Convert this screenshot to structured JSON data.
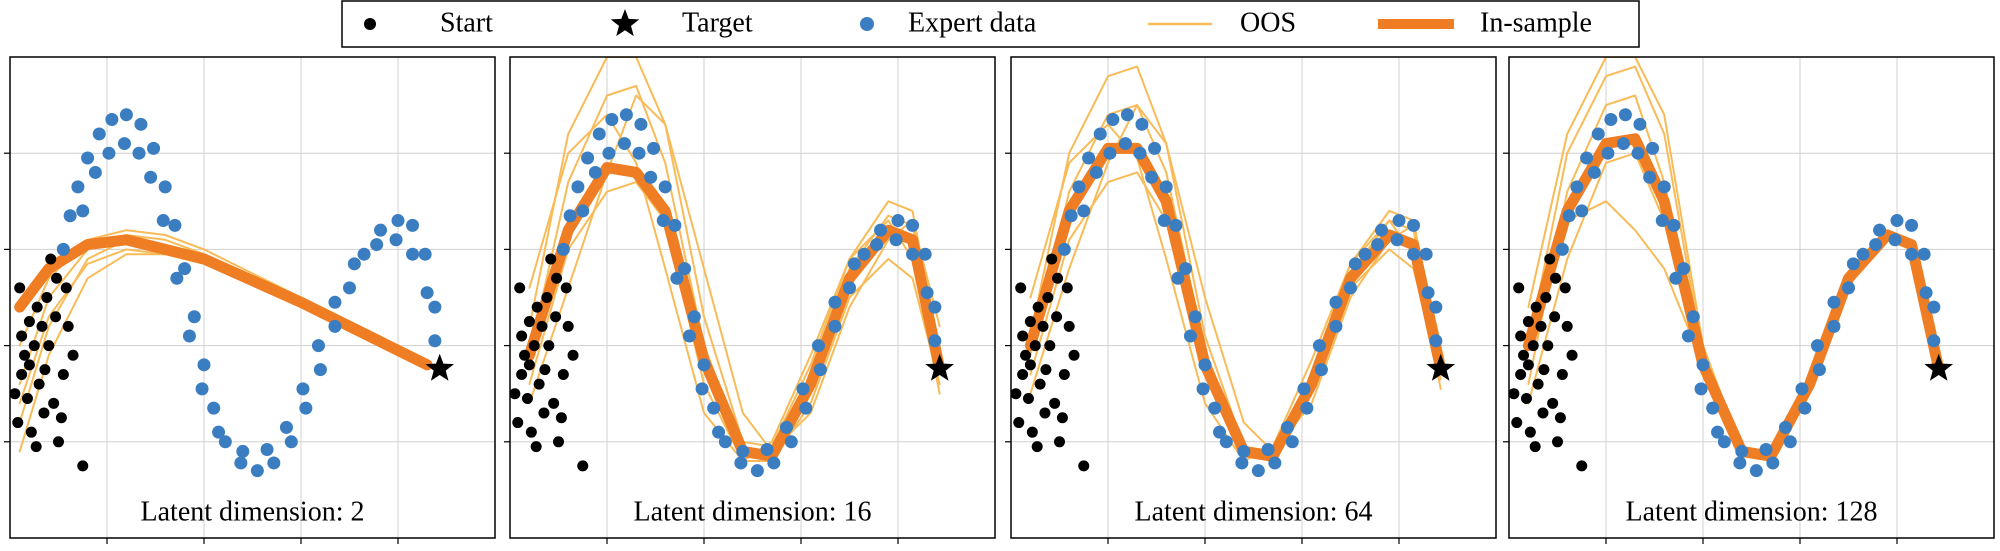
{
  "legend": [
    {
      "label": "Start",
      "marker": "dot",
      "color": "#000000"
    },
    {
      "label": "Target",
      "marker": "star",
      "color": "#000000"
    },
    {
      "label": "Expert data",
      "marker": "dot",
      "color": "#3a7dc0"
    },
    {
      "label": "OOS",
      "marker": "line",
      "color": "#f8bb58"
    },
    {
      "label": "In-sample",
      "marker": "thick-line",
      "color": "#ee7d24"
    }
  ],
  "start": {
    "x": [
      0.05,
      0.12,
      0.2,
      0.28,
      0.35,
      0.4,
      0.48,
      0.55,
      0.1,
      0.22,
      0.3,
      0.45,
      0.6,
      0.15,
      0.38,
      0.5,
      0.25,
      0.08,
      0.42,
      0.33,
      0.18,
      0.58,
      0.65,
      0.27,
      0.47,
      0.12,
      0.36,
      0.53,
      0.2,
      0.75
    ],
    "y": [
      1.5,
      2.1,
      1.8,
      2.4,
      1.3,
      2.0,
      2.7,
      1.7,
      2.6,
      1.1,
      1.6,
      1.4,
      2.2,
      1.9,
      2.5,
      1.0,
      2.0,
      1.2,
      2.9,
      2.2,
      1.45,
      2.6,
      1.9,
      0.95,
      2.3,
      1.7,
      1.75,
      1.25,
      2.25,
      0.75
    ]
  },
  "target": {
    "x": 4.43,
    "y": 1.76
  },
  "expert_data": {
    "x": [
      0.55,
      0.62,
      0.7,
      0.8,
      0.92,
      1.05,
      1.2,
      1.35,
      1.48,
      1.6,
      1.7,
      1.8,
      1.9,
      2.0,
      2.1,
      2.22,
      2.38,
      2.55,
      2.72,
      2.9,
      3.05,
      3.2,
      3.35,
      3.5,
      3.65,
      3.82,
      4.0,
      4.15,
      4.28,
      4.38,
      0.75,
      0.88,
      1.02,
      1.18,
      1.33,
      1.45,
      1.58,
      1.72,
      1.85,
      1.98,
      2.15,
      2.4,
      2.65,
      2.85,
      3.02,
      3.18,
      3.35,
      3.55,
      3.78,
      3.98,
      4.15,
      4.3,
      4.38
    ],
    "y": [
      3.0,
      3.35,
      3.65,
      3.95,
      4.2,
      4.35,
      4.4,
      4.3,
      4.05,
      3.65,
      3.25,
      2.8,
      2.3,
      1.8,
      1.35,
      1.0,
      0.78,
      0.7,
      0.78,
      1.0,
      1.35,
      1.75,
      2.2,
      2.6,
      2.95,
      3.2,
      3.3,
      3.25,
      2.95,
      2.4,
      3.4,
      3.8,
      4.0,
      4.1,
      4.0,
      3.75,
      3.3,
      2.7,
      2.1,
      1.55,
      1.1,
      0.9,
      0.92,
      1.15,
      1.55,
      2.0,
      2.45,
      2.85,
      3.05,
      3.1,
      2.95,
      2.55,
      2.05
    ]
  },
  "chart_data": [
    {
      "type": "line",
      "title": "Latent dimension: 2",
      "x": [
        0.1,
        0.4,
        0.8,
        1.2,
        1.6,
        2.0,
        3.0,
        4.3
      ],
      "oos": [
        [
          1.2,
          2.2,
          2.9,
          3.1,
          3.05,
          2.9,
          null,
          null
        ],
        [
          1.6,
          2.5,
          3.0,
          3.15,
          3.1,
          2.95,
          2.5,
          null
        ],
        [
          0.9,
          1.9,
          2.7,
          2.95,
          2.95,
          2.85,
          null,
          null
        ],
        [
          2.0,
          2.7,
          3.1,
          3.2,
          3.15,
          3.0,
          2.5,
          1.85
        ],
        [
          1.4,
          2.3,
          2.85,
          3.0,
          2.95,
          null,
          null,
          null
        ]
      ],
      "in_sample": [
        2.4,
        2.8,
        3.05,
        3.1,
        3.0,
        2.9,
        2.45,
        1.8
      ],
      "xlim": [
        0,
        5
      ],
      "ylim": [
        0,
        5
      ],
      "xticks": [
        1,
        2,
        3,
        4
      ],
      "yticks": [
        1,
        2,
        3,
        4
      ],
      "grid": true
    },
    {
      "type": "line",
      "title": "Latent dimension: 16",
      "x": [
        0.2,
        0.6,
        1.0,
        1.3,
        1.6,
        2.0,
        2.4,
        2.7,
        3.1,
        3.5,
        3.9,
        4.15,
        4.43
      ],
      "oos": [
        [
          2.2,
          4.2,
          5.0,
          5.0,
          4.3,
          2.3,
          1.0,
          0.95,
          1.8,
          2.9,
          3.5,
          3.4,
          1.9
        ],
        [
          1.6,
          3.0,
          3.6,
          3.7,
          3.3,
          1.6,
          0.8,
          0.8,
          1.4,
          2.5,
          2.9,
          2.7,
          1.6
        ],
        [
          1.4,
          2.6,
          3.8,
          4.6,
          4.3,
          2.8,
          1.3,
          0.9,
          1.3,
          2.4,
          3.1,
          3.3,
          2.2
        ],
        [
          2.6,
          4.0,
          4.4,
          3.9,
          2.8,
          1.3,
          0.8,
          1.0,
          1.9,
          2.9,
          3.3,
          2.9,
          1.5
        ],
        [
          1.9,
          3.7,
          4.6,
          4.7,
          3.9,
          2.0,
          0.95,
          0.85,
          1.7,
          2.8,
          3.35,
          3.25,
          1.8
        ]
      ],
      "in_sample": [
        1.9,
        3.2,
        3.85,
        3.8,
        3.4,
        1.85,
        0.9,
        0.85,
        1.6,
        2.7,
        3.2,
        3.1,
        1.76
      ],
      "xlim": [
        0,
        5
      ],
      "ylim": [
        0,
        5
      ],
      "xticks": [
        1,
        2,
        3,
        4
      ],
      "yticks": [
        1,
        2,
        3,
        4
      ],
      "grid": true
    },
    {
      "type": "line",
      "title": "Latent dimension: 64",
      "x": [
        0.2,
        0.6,
        1.0,
        1.3,
        1.6,
        2.0,
        2.4,
        2.7,
        3.1,
        3.5,
        3.9,
        4.15,
        4.43
      ],
      "oos": [
        [
          2.1,
          4.0,
          4.8,
          4.9,
          4.1,
          2.1,
          0.95,
          0.9,
          1.7,
          2.85,
          3.4,
          3.3,
          1.85
        ],
        [
          1.7,
          3.1,
          3.7,
          3.8,
          3.3,
          1.7,
          0.85,
          0.8,
          1.5,
          2.6,
          3.0,
          2.8,
          1.65
        ],
        [
          1.5,
          2.8,
          3.9,
          4.5,
          4.1,
          2.5,
          1.2,
          0.9,
          1.4,
          2.5,
          3.1,
          3.25,
          2.0
        ],
        [
          2.5,
          3.9,
          4.3,
          3.95,
          2.9,
          1.4,
          0.8,
          0.95,
          1.85,
          2.85,
          3.3,
          2.95,
          1.55
        ],
        [
          1.9,
          3.6,
          4.4,
          4.5,
          3.8,
          1.95,
          0.92,
          0.85,
          1.65,
          2.75,
          3.3,
          3.2,
          1.8
        ]
      ],
      "in_sample": [
        2.0,
        3.4,
        4.05,
        4.05,
        3.5,
        1.8,
        0.9,
        0.85,
        1.6,
        2.7,
        3.15,
        3.05,
        1.76
      ],
      "xlim": [
        0,
        5
      ],
      "ylim": [
        0,
        5
      ],
      "xticks": [
        1,
        2,
        3,
        4
      ],
      "yticks": [
        1,
        2,
        3,
        4
      ],
      "grid": true
    },
    {
      "type": "line",
      "title": "Latent dimension: 128",
      "x": [
        0.2,
        0.6,
        1.0,
        1.3,
        1.6,
        2.0,
        2.4,
        2.7,
        3.1,
        3.5,
        3.9,
        4.15,
        4.43
      ],
      "oos": [
        [
          2.0,
          4.0,
          4.8,
          4.9,
          4.2,
          1.9,
          0.9,
          0.85,
          1.6,
          2.7,
          3.15,
          3.05,
          1.76
        ],
        [
          2.2,
          3.3,
          3.5,
          3.2,
          2.8,
          1.8,
          0.9,
          0.85,
          1.6,
          2.7,
          3.15,
          3.05,
          1.76
        ],
        [
          1.6,
          3.6,
          4.5,
          4.6,
          3.7,
          1.85,
          0.9,
          0.85,
          1.6,
          2.7,
          3.15,
          3.05,
          1.76
        ],
        [
          2.4,
          4.2,
          5.0,
          5.0,
          4.4,
          2.0,
          0.92,
          0.85,
          1.6,
          2.7,
          3.15,
          3.05,
          1.76
        ],
        [
          1.4,
          2.9,
          3.9,
          4.0,
          3.3,
          1.8,
          0.9,
          0.85,
          1.6,
          2.7,
          3.15,
          3.05,
          1.76
        ]
      ],
      "in_sample": [
        2.0,
        3.4,
        4.1,
        4.15,
        3.5,
        1.8,
        0.9,
        0.85,
        1.6,
        2.7,
        3.15,
        3.05,
        1.76
      ],
      "xlim": [
        0,
        5
      ],
      "ylim": [
        0,
        5
      ],
      "xticks": [
        1,
        2,
        3,
        4
      ],
      "yticks": [
        1,
        2,
        3,
        4
      ],
      "grid": true
    }
  ]
}
